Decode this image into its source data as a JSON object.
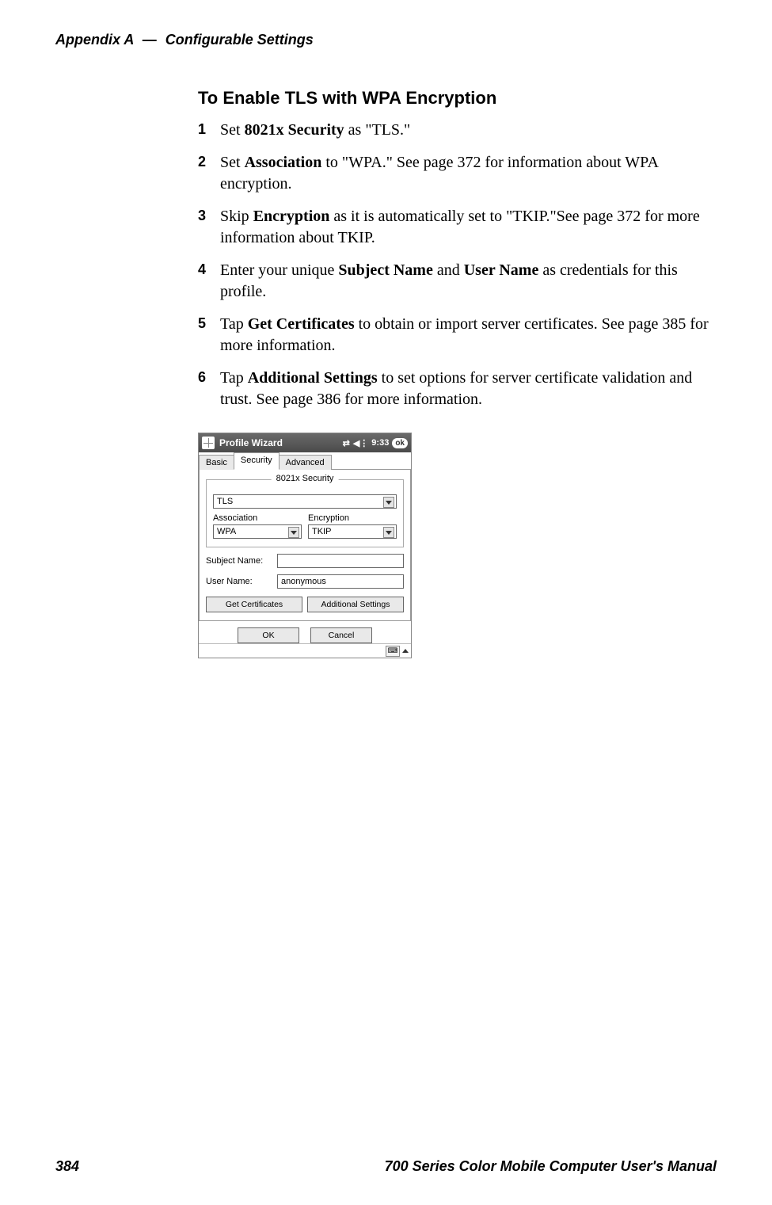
{
  "header": {
    "appendix": "Appendix  A",
    "dash": "—",
    "chapter": "Configurable Settings"
  },
  "section_title": "To Enable TLS with WPA Encryption",
  "steps": [
    {
      "num": "1",
      "pre": "Set ",
      "bold": "8021x Security",
      "post": " as \"TLS.\""
    },
    {
      "num": "2",
      "pre": "Set ",
      "bold": "Association",
      "post": " to \"WPA.\" See page 372 for information about WPA encryption."
    },
    {
      "num": "3",
      "pre": "Skip ",
      "bold": "Encryption",
      "post": " as it is automatically set to \"TKIP.\"See page 372 for more information about TKIP."
    },
    {
      "num": "4",
      "pre": "Enter your unique ",
      "bold": "Subject Name",
      "mid": " and ",
      "bold2": "User Name",
      "post": " as credentials for this profile."
    },
    {
      "num": "5",
      "pre": "Tap ",
      "bold": "Get Certificates",
      "post": " to obtain or import server certificates. See page 385 for more information."
    },
    {
      "num": "6",
      "pre": "Tap ",
      "bold": "Additional Settings",
      "post": " to set options for server certificate validation and trust. See page 386 for more information."
    }
  ],
  "device": {
    "title": "Profile Wizard",
    "clock": "9:33",
    "ok_badge": "ok",
    "tabs": {
      "basic": "Basic",
      "security": "Security",
      "advanced": "Advanced"
    },
    "legend": "8021x Security",
    "security_value": "TLS",
    "assoc_label": "Association",
    "assoc_value": "WPA",
    "enc_label": "Encryption",
    "enc_value": "TKIP",
    "subj_label": "Subject Name:",
    "subj_value": "",
    "user_label": "User Name:",
    "user_value": "anonymous",
    "btn_get": "Get Certificates",
    "btn_add": "Additional Settings",
    "btn_ok": "OK",
    "btn_cancel": "Cancel"
  },
  "footer": {
    "page": "384",
    "manual": "700 Series Color Mobile Computer User's Manual"
  }
}
